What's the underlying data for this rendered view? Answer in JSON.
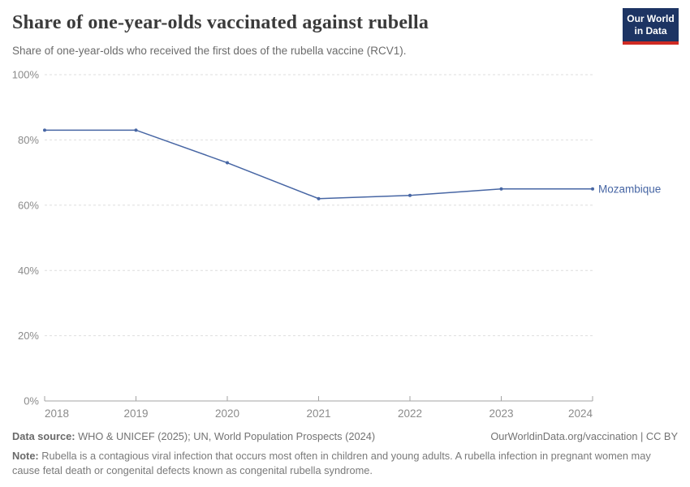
{
  "header": {
    "title": "Share of one-year-olds vaccinated against rubella",
    "subtitle": "Share of one-year-olds who received the first does of the rubella vaccine (RCV1).",
    "logo": {
      "line1": "Our World",
      "line2": "in Data"
    }
  },
  "chart_data": {
    "type": "line",
    "title": "Share of one-year-olds vaccinated against rubella",
    "x": [
      "2018",
      "2019",
      "2020",
      "2021",
      "2022",
      "2023",
      "2024"
    ],
    "series": [
      {
        "name": "Mozambique",
        "values": [
          83,
          83,
          73,
          62,
          63,
          65,
          65
        ],
        "color": "#4766a4"
      }
    ],
    "xlabel": "",
    "ylabel": "",
    "ylim": [
      0,
      100
    ],
    "yticks": [
      0,
      20,
      40,
      60,
      80,
      100
    ],
    "ytick_suffix": "%",
    "grid": "horizontal-dashed",
    "legend": "end-of-line-label"
  },
  "chart_style": {
    "grid_color": "#dedede",
    "axis_color": "#a3a3a3",
    "tick_label_color": "#8b8b8b"
  },
  "footer": {
    "datasource_label": "Data source:",
    "datasource_text": " WHO & UNICEF (2025); UN, World Population Prospects (2024)",
    "link_text": "OurWorldinData.org/vaccination | CC BY",
    "note_label": "Note:",
    "note_text": " Rubella is a contagious viral infection that occurs most often in children and young adults. A rubella infection in pregnant women may cause fetal death or congenital defects known as congenital rubella syndrome."
  }
}
